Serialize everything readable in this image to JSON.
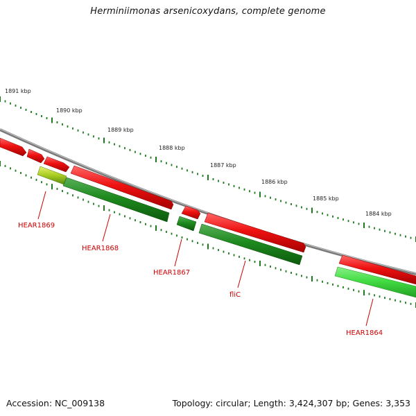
{
  "title": "Herminiimonas arsenicoxydans, complete genome",
  "footer": {
    "accession": "Accession: NC_009138",
    "summary": "Topology: circular; Length: 3,424,307 bp; Genes: 3,353"
  },
  "scale_labels": [
    "1891 kbp",
    "1890 kbp",
    "1889 kbp",
    "1888 kbp",
    "1887 kbp",
    "1886 kbp",
    "1885 kbp",
    "1884 kbp"
  ],
  "gene_labels": [
    "HEAR1869",
    "HEAR1868",
    "HEAR1867",
    "fliC",
    "HEAR1864"
  ],
  "colors": {
    "forward_gene": "#ee1111",
    "reverse_gene": "#1e8a1e",
    "highlight_gene": "#44dd44",
    "partial_gene": "#a8cc22",
    "backbone": "#7a7a7a",
    "tick": "#1b7a1b",
    "label": "#cc0000"
  }
}
